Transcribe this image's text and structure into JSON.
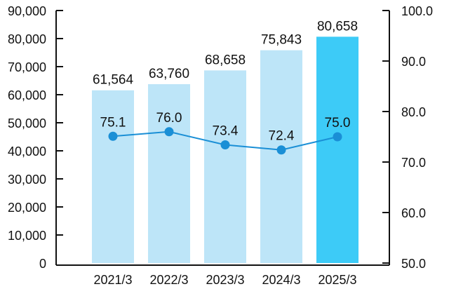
{
  "chart_data": {
    "type": "bar",
    "categories": [
      "2021/3",
      "2022/3",
      "2023/3",
      "2024/3",
      "2025/3"
    ],
    "series": [
      {
        "type": "bar",
        "axis": "left",
        "values": [
          61564,
          63760,
          68658,
          75843,
          80658
        ],
        "value_labels": [
          "61,564",
          "63,760",
          "68,658",
          "75,843",
          "80,658"
        ]
      },
      {
        "type": "line",
        "axis": "right",
        "values": [
          75.1,
          76.0,
          73.4,
          72.4,
          75.0
        ],
        "value_labels": [
          "75.1",
          "76.0",
          "73.4",
          "72.4",
          "75.0"
        ]
      }
    ],
    "y_left": {
      "lim": [
        0,
        90000
      ],
      "ticks": [
        "0",
        "10,000",
        "20,000",
        "30,000",
        "40,000",
        "50,000",
        "60,000",
        "70,000",
        "80,000",
        "90,000"
      ]
    },
    "y_right": {
      "lim": [
        50.0,
        100.0
      ],
      "ticks": [
        "50.0",
        "60.0",
        "70.0",
        "80.0",
        "90.0",
        "100.0"
      ]
    },
    "grid": false,
    "legend": "none",
    "colors": {
      "bar": "#bde5f8",
      "bar_highlight": "#3dcbf7",
      "line": "#1a8fd6",
      "axis": "#111111"
    }
  }
}
